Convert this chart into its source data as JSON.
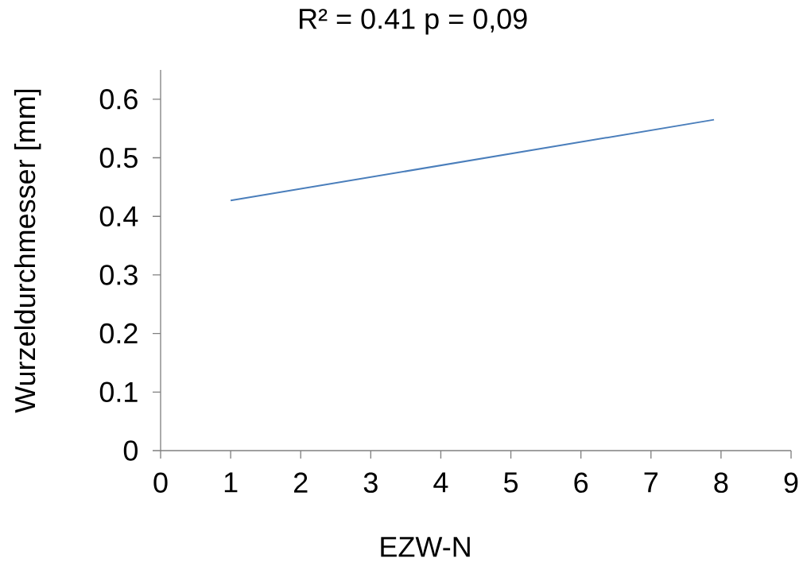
{
  "chart_data": {
    "type": "line",
    "title": "R² = 0.41    p = 0,09",
    "xlabel": "EZW-N",
    "ylabel": "Wurzeldurchmesser [mm]",
    "x": [
      1.0,
      7.9
    ],
    "series": [
      {
        "color": "#4a7ebb",
        "values": [
          0.427,
          0.565
        ]
      }
    ],
    "xlim": [
      0,
      9
    ],
    "xticks": [
      0,
      1,
      2,
      3,
      4,
      5,
      6,
      7,
      8,
      9
    ],
    "ylim": [
      0,
      0.65
    ],
    "yticks": [
      0,
      0.1,
      0.2,
      0.3,
      0.4,
      0.5,
      0.6
    ],
    "grid": false
  }
}
